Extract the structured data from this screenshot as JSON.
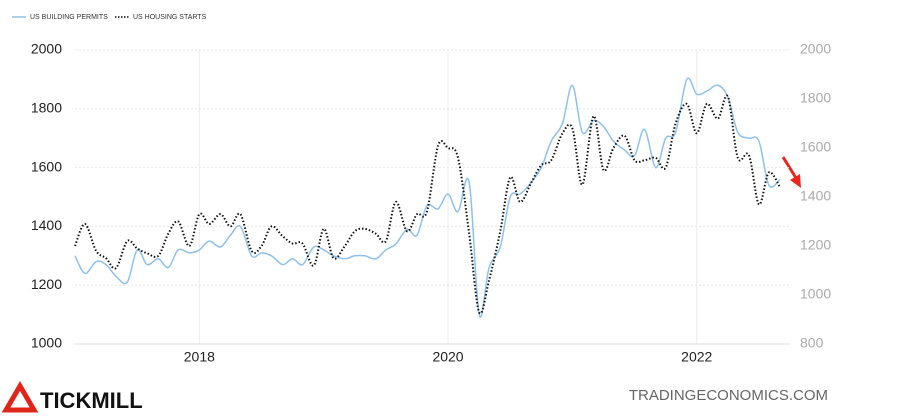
{
  "chart_data": {
    "type": "line",
    "logo": "TICKMILL",
    "source": "TRADINGECONOMICS.COM",
    "x": [
      2017.0,
      2017.08,
      2017.17,
      2017.25,
      2017.33,
      2017.42,
      2017.5,
      2017.58,
      2017.67,
      2017.75,
      2017.83,
      2017.92,
      2018.0,
      2018.08,
      2018.17,
      2018.25,
      2018.33,
      2018.42,
      2018.5,
      2018.58,
      2018.67,
      2018.75,
      2018.83,
      2018.92,
      2019.0,
      2019.08,
      2019.17,
      2019.25,
      2019.33,
      2019.42,
      2019.5,
      2019.58,
      2019.67,
      2019.75,
      2019.83,
      2019.92,
      2020.0,
      2020.08,
      2020.17,
      2020.25,
      2020.33,
      2020.42,
      2020.5,
      2020.58,
      2020.67,
      2020.75,
      2020.83,
      2020.92,
      2021.0,
      2021.08,
      2021.17,
      2021.25,
      2021.33,
      2021.42,
      2021.5,
      2021.58,
      2021.67,
      2021.75,
      2021.83,
      2021.92,
      2022.0,
      2022.08,
      2022.17,
      2022.25,
      2022.33,
      2022.42,
      2022.5,
      2022.58,
      2022.67
    ],
    "series": [
      {
        "name": "US BUILDING PERMITS",
        "color": "#8fc1ea",
        "axis": "y",
        "values": [
          1300,
          1240,
          1280,
          1270,
          1230,
          1210,
          1320,
          1270,
          1290,
          1260,
          1320,
          1310,
          1320,
          1350,
          1330,
          1370,
          1400,
          1300,
          1310,
          1300,
          1270,
          1290,
          1270,
          1330,
          1320,
          1300,
          1290,
          1300,
          1300,
          1290,
          1320,
          1340,
          1390,
          1370,
          1470,
          1460,
          1510,
          1450,
          1550,
          1100,
          1260,
          1330,
          1500,
          1510,
          1550,
          1600,
          1690,
          1750,
          1880,
          1720,
          1760,
          1740,
          1690,
          1660,
          1640,
          1730,
          1600,
          1700,
          1720,
          1900,
          1850,
          1860,
          1880,
          1840,
          1720,
          1700,
          1690,
          1540,
          1560
        ]
      },
      {
        "name": "US HOUSING STARTS",
        "color": "#111111",
        "axis": "y2",
        "values": [
          1200,
          1290,
          1180,
          1150,
          1110,
          1220,
          1190,
          1170,
          1160,
          1250,
          1300,
          1200,
          1330,
          1290,
          1330,
          1280,
          1330,
          1180,
          1200,
          1280,
          1240,
          1210,
          1210,
          1120,
          1270,
          1150,
          1200,
          1260,
          1270,
          1250,
          1220,
          1380,
          1260,
          1330,
          1340,
          1610,
          1600,
          1560,
          1250,
          930,
          1060,
          1260,
          1480,
          1380,
          1460,
          1530,
          1550,
          1660,
          1680,
          1450,
          1730,
          1510,
          1600,
          1650,
          1550,
          1550,
          1560,
          1520,
          1700,
          1780,
          1660,
          1780,
          1720,
          1810,
          1560,
          1570,
          1370,
          1500,
          1440
        ]
      }
    ],
    "xlim": [
      2017.0,
      2022.75
    ],
    "xticks": [
      2018,
      2020,
      2022
    ],
    "ylim": [
      1000,
      2000
    ],
    "yticks": [
      1000,
      1200,
      1400,
      1600,
      1800,
      2000
    ],
    "y2lim": [
      800,
      2000
    ],
    "y2ticks": [
      800,
      1000,
      1200,
      1400,
      1600,
      1800,
      2000
    ],
    "grid": true,
    "legend": "top-left"
  }
}
